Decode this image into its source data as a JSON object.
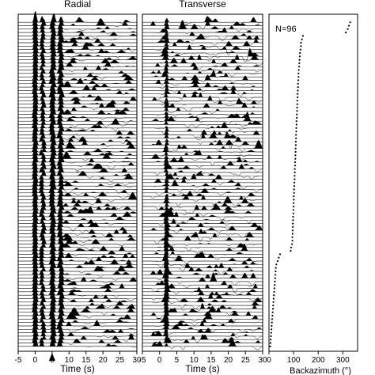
{
  "chart_data": [
    {
      "type": "line",
      "panel": "radial",
      "title": "Radial",
      "xlabel": "Time (s)",
      "xlim": [
        -5,
        30
      ],
      "xticks": [
        -5,
        0,
        5,
        10,
        15,
        20,
        25,
        30
      ],
      "trace_count": 96,
      "trace_style": "receiver-function traces, positive lobes filled black",
      "marker": {
        "x": 5,
        "symbol": "arrow-up"
      }
    },
    {
      "type": "line",
      "panel": "transverse",
      "title": "Transverse",
      "xlabel": "Time (s)",
      "xlim": [
        -5,
        30
      ],
      "xticks": [
        -5,
        0,
        5,
        10,
        15,
        20,
        25,
        30
      ],
      "trace_count": 96,
      "trace_style": "receiver-function traces, positive lobes filled black"
    },
    {
      "type": "scatter",
      "panel": "backazimuth",
      "annotation": "N=96",
      "xlabel": "Backazimuth (°)",
      "xlim": [
        0,
        360
      ],
      "xticks": [
        0,
        100,
        200,
        300
      ],
      "y": "trace index 1-96 (top to bottom)",
      "x": [
        330,
        325,
        320,
        312,
        138,
        134,
        130,
        130,
        128,
        126,
        125,
        124,
        123,
        122,
        121,
        120,
        120,
        119,
        118,
        118,
        117,
        116,
        116,
        115,
        115,
        114,
        114,
        113,
        113,
        112,
        112,
        111,
        111,
        110,
        110,
        109,
        109,
        108,
        108,
        107,
        107,
        106,
        106,
        105,
        105,
        104,
        104,
        103,
        103,
        102,
        102,
        101,
        101,
        100,
        100,
        99,
        99,
        98,
        98,
        97,
        97,
        96,
        96,
        95,
        95,
        94,
        90,
        88,
        45,
        40,
        35,
        30,
        28,
        27,
        26,
        25,
        24,
        23,
        22,
        21,
        20,
        19,
        18,
        17,
        16,
        15,
        14,
        13,
        12,
        11,
        10,
        9,
        8,
        7,
        6,
        5
      ]
    }
  ]
}
